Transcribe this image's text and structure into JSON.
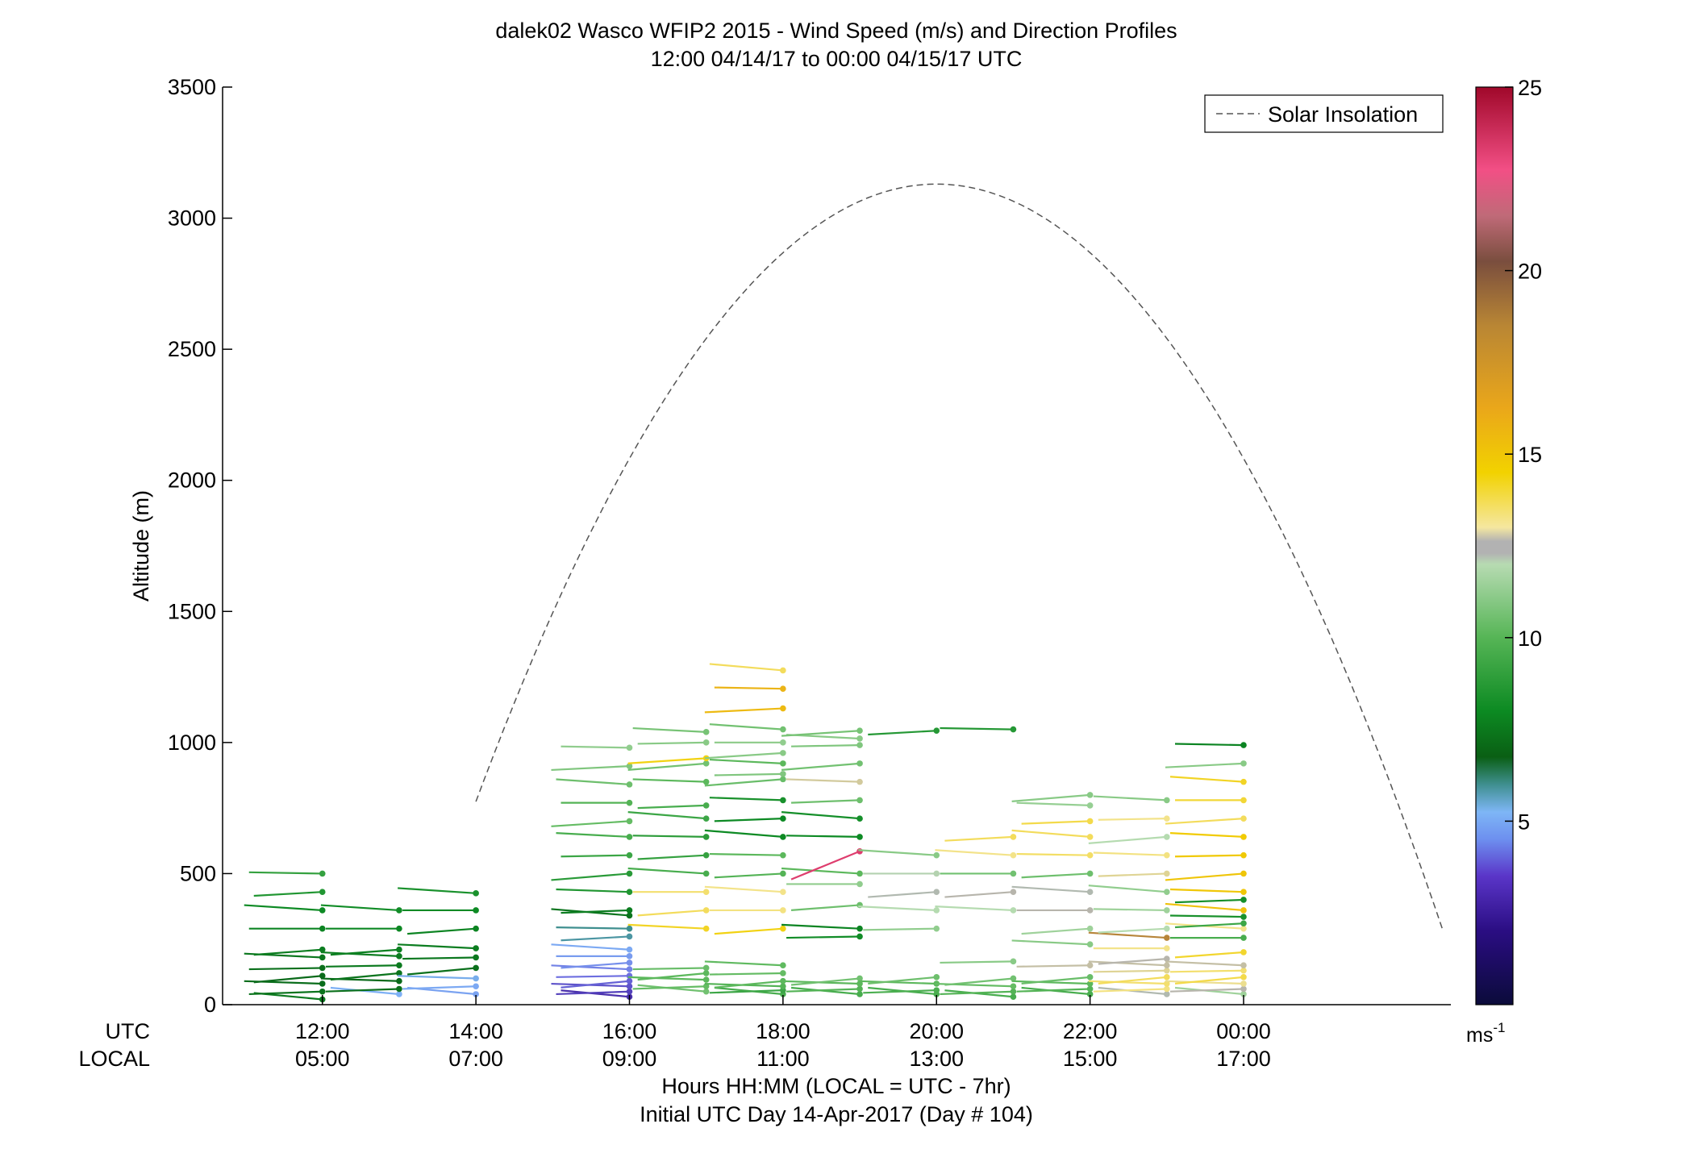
{
  "chart_data": {
    "type": "line",
    "title": "dalek02 Wasco WFIP2 2015 - Wind Speed (m/s) and Direction Profiles",
    "subtitle": "12:00 04/14/17 to 00:00 04/15/17  UTC",
    "ylabel": "Altitude (m)",
    "xlabel_line1": "Hours HH:MM  (LOCAL = UTC - 7hr)",
    "xlabel_line2": "Initial UTC Day 14-Apr-2017 (Day # 104)",
    "utc_row_label": "UTC",
    "local_row_label": "LOCAL",
    "ylim": [
      0,
      3500
    ],
    "xlim": [
      10.7,
      26.7
    ],
    "yticks": [
      "0",
      "500",
      "1000",
      "1500",
      "2000",
      "2500",
      "3000",
      "3500"
    ],
    "xticks": [
      {
        "utc": "12:00",
        "local": "05:00"
      },
      {
        "utc": "14:00",
        "local": "07:00"
      },
      {
        "utc": "16:00",
        "local": "09:00"
      },
      {
        "utc": "18:00",
        "local": "11:00"
      },
      {
        "utc": "20:00",
        "local": "13:00"
      },
      {
        "utc": "22:00",
        "local": "15:00"
      },
      {
        "utc": "00:00",
        "local": "17:00"
      }
    ],
    "legend": {
      "label": "Solar Insolation",
      "location": "top-right",
      "style": "dashed",
      "color": "#555555"
    },
    "solar_insolation": {
      "peak_hour": 20.0,
      "peak_altitude": 3130,
      "x0": 14.0,
      "x1": 26.6,
      "y_at_x1": 280
    },
    "colorbar": {
      "min": 0,
      "max": 25,
      "tick_labels": [
        "5",
        "10",
        "15",
        "20",
        "25"
      ],
      "unit": "ms",
      "unit_exp": "-1",
      "colors": {
        "0": "#0b0b3a",
        "2": "#3a1496",
        "4": "#6d6ee0",
        "5": "#7eb0f5",
        "6": "#3f8f8f",
        "7": "#0a6a1a",
        "8": "#0d8a24",
        "10": "#5cb85c",
        "12": "#b5dbb0",
        "12.5": "#b0b0b0",
        "13.5": "#f3e38a",
        "15": "#f2cf00",
        "17": "#e7a524",
        "19": "#b7853a",
        "21": "#7a4e3e",
        "22": "#d85a7a",
        "23": "#f24f85",
        "25": "#a0082a"
      }
    },
    "profiles": [
      {
        "time": 12.0,
        "barbs": [
          [
            20,
            7.5
          ],
          [
            50,
            7.3
          ],
          [
            80,
            7.1
          ],
          [
            110,
            7
          ],
          [
            140,
            7.2
          ],
          [
            180,
            7.4
          ],
          [
            210,
            7.6
          ],
          [
            290,
            7.8
          ],
          [
            360,
            8
          ],
          [
            430,
            8.5
          ],
          [
            500,
            9
          ]
        ]
      },
      {
        "time": 13.0,
        "barbs": [
          [
            40,
            5
          ],
          [
            60,
            7.2
          ],
          [
            90,
            7
          ],
          [
            120,
            7.3
          ],
          [
            150,
            7.5
          ],
          [
            185,
            7.6
          ],
          [
            210,
            7.7
          ],
          [
            290,
            7.9
          ],
          [
            360,
            8.1
          ]
        ]
      },
      {
        "time": 14.0,
        "barbs": [
          [
            40,
            4.8
          ],
          [
            70,
            4.9
          ],
          [
            100,
            5.1
          ],
          [
            140,
            7.2
          ],
          [
            180,
            7.4
          ],
          [
            215,
            7.6
          ],
          [
            290,
            7.8
          ],
          [
            360,
            8
          ],
          [
            425,
            8.3
          ]
        ]
      },
      {
        "time": 16.0,
        "barbs": [
          [
            30,
            2.6
          ],
          [
            50,
            3
          ],
          [
            70,
            3.4
          ],
          [
            90,
            3.7
          ],
          [
            110,
            4
          ],
          [
            135,
            4.3
          ],
          [
            160,
            4.5
          ],
          [
            185,
            4.7
          ],
          [
            210,
            4.9
          ],
          [
            260,
            5.8
          ],
          [
            290,
            6
          ],
          [
            340,
            7.3
          ],
          [
            360,
            7.6
          ],
          [
            430,
            8.5
          ],
          [
            500,
            8.7
          ],
          [
            570,
            9.2
          ],
          [
            640,
            9.5
          ],
          [
            700,
            10.2
          ],
          [
            770,
            9.8
          ],
          [
            840,
            10.4
          ],
          [
            910,
            10.8
          ],
          [
            980,
            11.2
          ]
        ]
      },
      {
        "time": 17.0,
        "barbs": [
          [
            50,
            10.5
          ],
          [
            70,
            10.2
          ],
          [
            95,
            10
          ],
          [
            120,
            10
          ],
          [
            140,
            10.3
          ],
          [
            290,
            14.6
          ],
          [
            360,
            14
          ],
          [
            430,
            13.8
          ],
          [
            500,
            9.5
          ],
          [
            570,
            9
          ],
          [
            640,
            8.8
          ],
          [
            710,
            9.2
          ],
          [
            760,
            9.5
          ],
          [
            850,
            10
          ],
          [
            920,
            10.5
          ],
          [
            1000,
            11
          ],
          [
            1040,
            10.6
          ],
          [
            940,
            14.8
          ]
        ]
      },
      {
        "time": 18.0,
        "barbs": [
          [
            40,
            9.5
          ],
          [
            55,
            9.2
          ],
          [
            70,
            9.8
          ],
          [
            90,
            10
          ],
          [
            120,
            10.2
          ],
          [
            150,
            10.1
          ],
          [
            290,
            14.8
          ],
          [
            360,
            13.6
          ],
          [
            430,
            13.5
          ],
          [
            500,
            9.8
          ],
          [
            570,
            10
          ],
          [
            640,
            8
          ],
          [
            710,
            8
          ],
          [
            780,
            8.3
          ],
          [
            860,
            10.3
          ],
          [
            880,
            10.8
          ],
          [
            920,
            10
          ],
          [
            960,
            11
          ],
          [
            1000,
            11.2
          ],
          [
            1050,
            10.5
          ],
          [
            1130,
            16
          ],
          [
            1205,
            16.3
          ],
          [
            1275,
            14
          ]
        ]
      },
      {
        "time": 19.0,
        "barbs": [
          [
            40,
            9.5
          ],
          [
            60,
            9.8
          ],
          [
            80,
            10
          ],
          [
            100,
            10.5
          ],
          [
            260,
            8.1
          ],
          [
            290,
            7.8
          ],
          [
            380,
            10.4
          ],
          [
            460,
            11.2
          ],
          [
            500,
            10
          ],
          [
            585,
            23.5
          ],
          [
            640,
            8
          ],
          [
            710,
            8.2
          ],
          [
            780,
            10.4
          ],
          [
            850,
            13
          ],
          [
            920,
            10.5
          ],
          [
            990,
            10.8
          ],
          [
            1015,
            11
          ],
          [
            1045,
            10.6
          ]
        ]
      },
      {
        "time": 20.0,
        "barbs": [
          [
            40,
            9.5
          ],
          [
            55,
            9.6
          ],
          [
            80,
            10
          ],
          [
            105,
            10.4
          ],
          [
            290,
            11.2
          ],
          [
            360,
            12
          ],
          [
            430,
            12.4
          ],
          [
            500,
            12.1
          ],
          [
            570,
            11
          ],
          [
            1045,
            8.6
          ]
        ]
      },
      {
        "time": 21.0,
        "barbs": [
          [
            30,
            9.5
          ],
          [
            50,
            9.8
          ],
          [
            70,
            10.2
          ],
          [
            100,
            10.5
          ],
          [
            165,
            11
          ],
          [
            360,
            12
          ],
          [
            430,
            12.6
          ],
          [
            500,
            10.5
          ],
          [
            570,
            13.5
          ],
          [
            640,
            14
          ],
          [
            1050,
            8.6
          ]
        ]
      },
      {
        "time": 22.0,
        "barbs": [
          [
            40,
            9.5
          ],
          [
            60,
            9.8
          ],
          [
            80,
            10
          ],
          [
            105,
            10.3
          ],
          [
            150,
            12.8
          ],
          [
            230,
            11
          ],
          [
            290,
            11.5
          ],
          [
            360,
            12.6
          ],
          [
            430,
            12.4
          ],
          [
            500,
            10.4
          ],
          [
            570,
            13.9
          ],
          [
            640,
            14
          ],
          [
            700,
            14.2
          ],
          [
            760,
            11.3
          ],
          [
            800,
            11
          ]
        ]
      },
      {
        "time": 23.0,
        "barbs": [
          [
            40,
            12.4
          ],
          [
            60,
            13.6
          ],
          [
            80,
            13.8
          ],
          [
            105,
            14
          ],
          [
            130,
            13.2
          ],
          [
            150,
            12.8
          ],
          [
            175,
            12.6
          ],
          [
            215,
            13.5
          ],
          [
            255,
            19
          ],
          [
            290,
            12
          ],
          [
            360,
            11.5
          ],
          [
            430,
            11.2
          ],
          [
            500,
            13.2
          ],
          [
            570,
            13.6
          ],
          [
            640,
            12
          ],
          [
            710,
            13.5
          ],
          [
            780,
            11
          ]
        ]
      },
      {
        "time": 24.0,
        "barbs": [
          [
            40,
            11.5
          ],
          [
            60,
            12.6
          ],
          [
            80,
            13.4
          ],
          [
            105,
            14.2
          ],
          [
            130,
            13.8
          ],
          [
            150,
            12.8
          ],
          [
            200,
            14.5
          ],
          [
            255,
            9.5
          ],
          [
            290,
            13.5
          ],
          [
            310,
            9.2
          ],
          [
            335,
            8.3
          ],
          [
            360,
            15.6
          ],
          [
            400,
            8.2
          ],
          [
            430,
            15.4
          ],
          [
            500,
            15.5
          ],
          [
            570,
            15.3
          ],
          [
            640,
            15.2
          ],
          [
            710,
            14
          ],
          [
            780,
            14.4
          ],
          [
            850,
            14.6
          ],
          [
            920,
            11
          ],
          [
            990,
            7.8
          ]
        ]
      }
    ]
  }
}
